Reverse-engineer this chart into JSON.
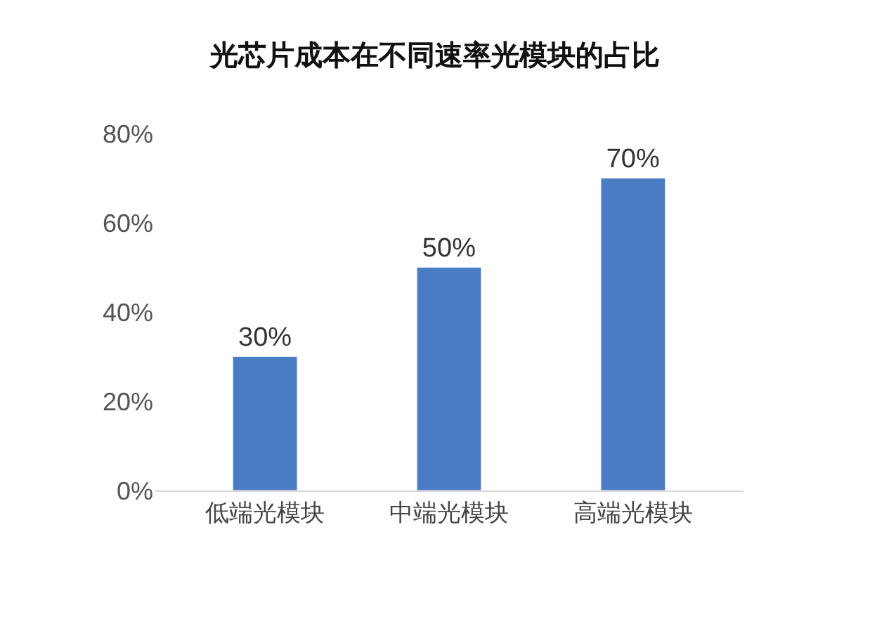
{
  "chart_data": {
    "type": "bar",
    "title": "光芯片成本在不同速率光模块的占比",
    "categories": [
      "低端光模块",
      "中端光模块",
      "高端光模块"
    ],
    "values": [
      30,
      50,
      70
    ],
    "color": "#4a7cc4",
    "value_labels": [
      "30%",
      "50%",
      "70%"
    ],
    "ylim": [
      0,
      80
    ],
    "yticks": [
      {
        "value": 0,
        "label": "0%"
      },
      {
        "value": 20,
        "label": "20%"
      },
      {
        "value": 40,
        "label": "40%"
      },
      {
        "value": 60,
        "label": "60%"
      },
      {
        "value": 80,
        "label": "80%"
      }
    ],
    "legend": false
  }
}
